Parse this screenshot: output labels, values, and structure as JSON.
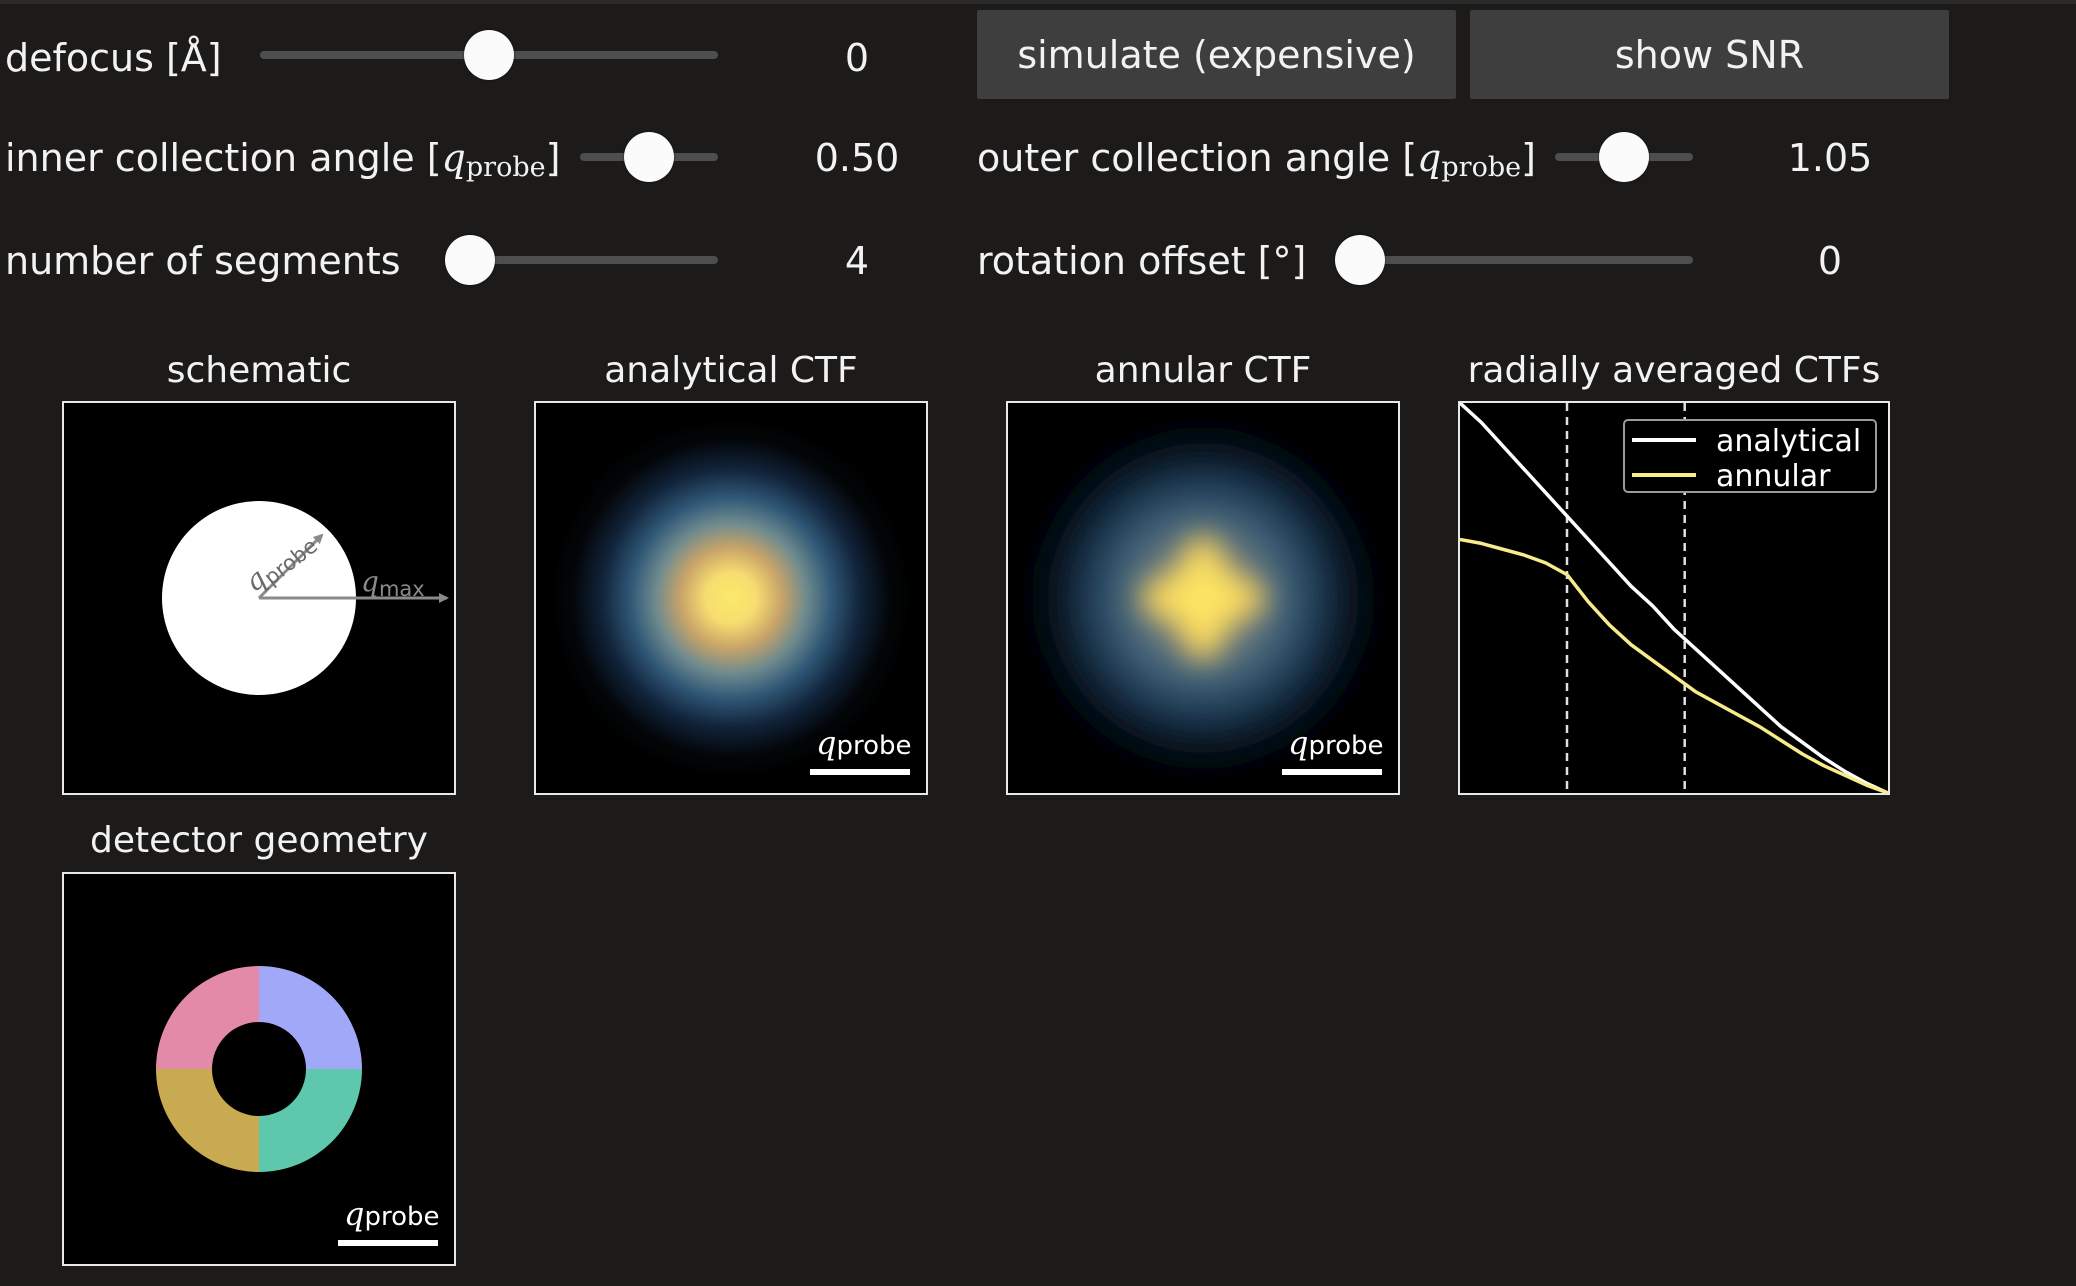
{
  "controls": {
    "defocus": {
      "label": "defocus [Å]",
      "value": "0",
      "fraction": 0.5
    },
    "simulate_button": "simulate (expensive)",
    "snr_button": "show SNR",
    "inner_angle": {
      "label_prefix": "inner collection angle [",
      "symbol": "q",
      "subscript": "probe",
      "label_suffix": "]",
      "value": "0.50",
      "fraction": 0.5
    },
    "outer_angle": {
      "label_prefix": "outer collection angle [",
      "symbol": "q",
      "subscript": "probe",
      "label_suffix": "]",
      "value": "1.05",
      "fraction": 0.5
    },
    "segments": {
      "label": "number of segments",
      "value": "4",
      "fraction": 0.0
    },
    "rotation": {
      "label": "rotation offset [°]",
      "value": "0",
      "fraction": 0.0
    }
  },
  "panels": {
    "schematic": {
      "title": "schematic",
      "probe_symbol": "q",
      "probe_sub": "probe",
      "max_symbol": "q",
      "max_sub": "max"
    },
    "analytical": {
      "title": "analytical CTF"
    },
    "annular": {
      "title": "annular CTF"
    },
    "radial": {
      "title": "radially averaged CTFs"
    },
    "detector": {
      "title": "detector geometry"
    },
    "scalebar": {
      "symbol": "q",
      "subscript": "probe"
    }
  },
  "chart_data": {
    "type": "line",
    "title": "radially averaged CTFs",
    "xlabel": "",
    "ylabel": "",
    "xlim": [
      0,
      2.0
    ],
    "ylim": [
      0,
      1.0
    ],
    "vlines": [
      0.5,
      1.05
    ],
    "legend_position": "top-right",
    "series": [
      {
        "name": "analytical",
        "color": "#ffffff",
        "x": [
          0,
          0.1,
          0.2,
          0.3,
          0.4,
          0.5,
          0.6,
          0.7,
          0.8,
          0.9,
          1.0,
          1.1,
          1.2,
          1.3,
          1.4,
          1.5,
          1.6,
          1.7,
          1.8,
          1.9,
          2.0
        ],
        "y": [
          1.0,
          0.95,
          0.89,
          0.83,
          0.77,
          0.71,
          0.65,
          0.59,
          0.53,
          0.48,
          0.42,
          0.37,
          0.32,
          0.27,
          0.22,
          0.17,
          0.13,
          0.09,
          0.055,
          0.025,
          0.0
        ]
      },
      {
        "name": "annular",
        "color": "#f7eb8a",
        "x": [
          0,
          0.1,
          0.2,
          0.3,
          0.4,
          0.5,
          0.6,
          0.7,
          0.8,
          0.9,
          1.0,
          1.1,
          1.2,
          1.3,
          1.4,
          1.5,
          1.6,
          1.7,
          1.8,
          1.9,
          2.0
        ],
        "y": [
          0.65,
          0.64,
          0.625,
          0.61,
          0.59,
          0.56,
          0.49,
          0.43,
          0.38,
          0.34,
          0.3,
          0.26,
          0.23,
          0.2,
          0.17,
          0.135,
          0.1,
          0.07,
          0.045,
          0.02,
          0.0
        ]
      }
    ]
  },
  "colors": {
    "background": "#1c1b1a",
    "button": "#3e3e3e",
    "segment_pink": "#e28aa8",
    "segment_blue": "#a0a8f7",
    "segment_gold": "#c8aa50",
    "segment_teal": "#5ec8ac"
  }
}
